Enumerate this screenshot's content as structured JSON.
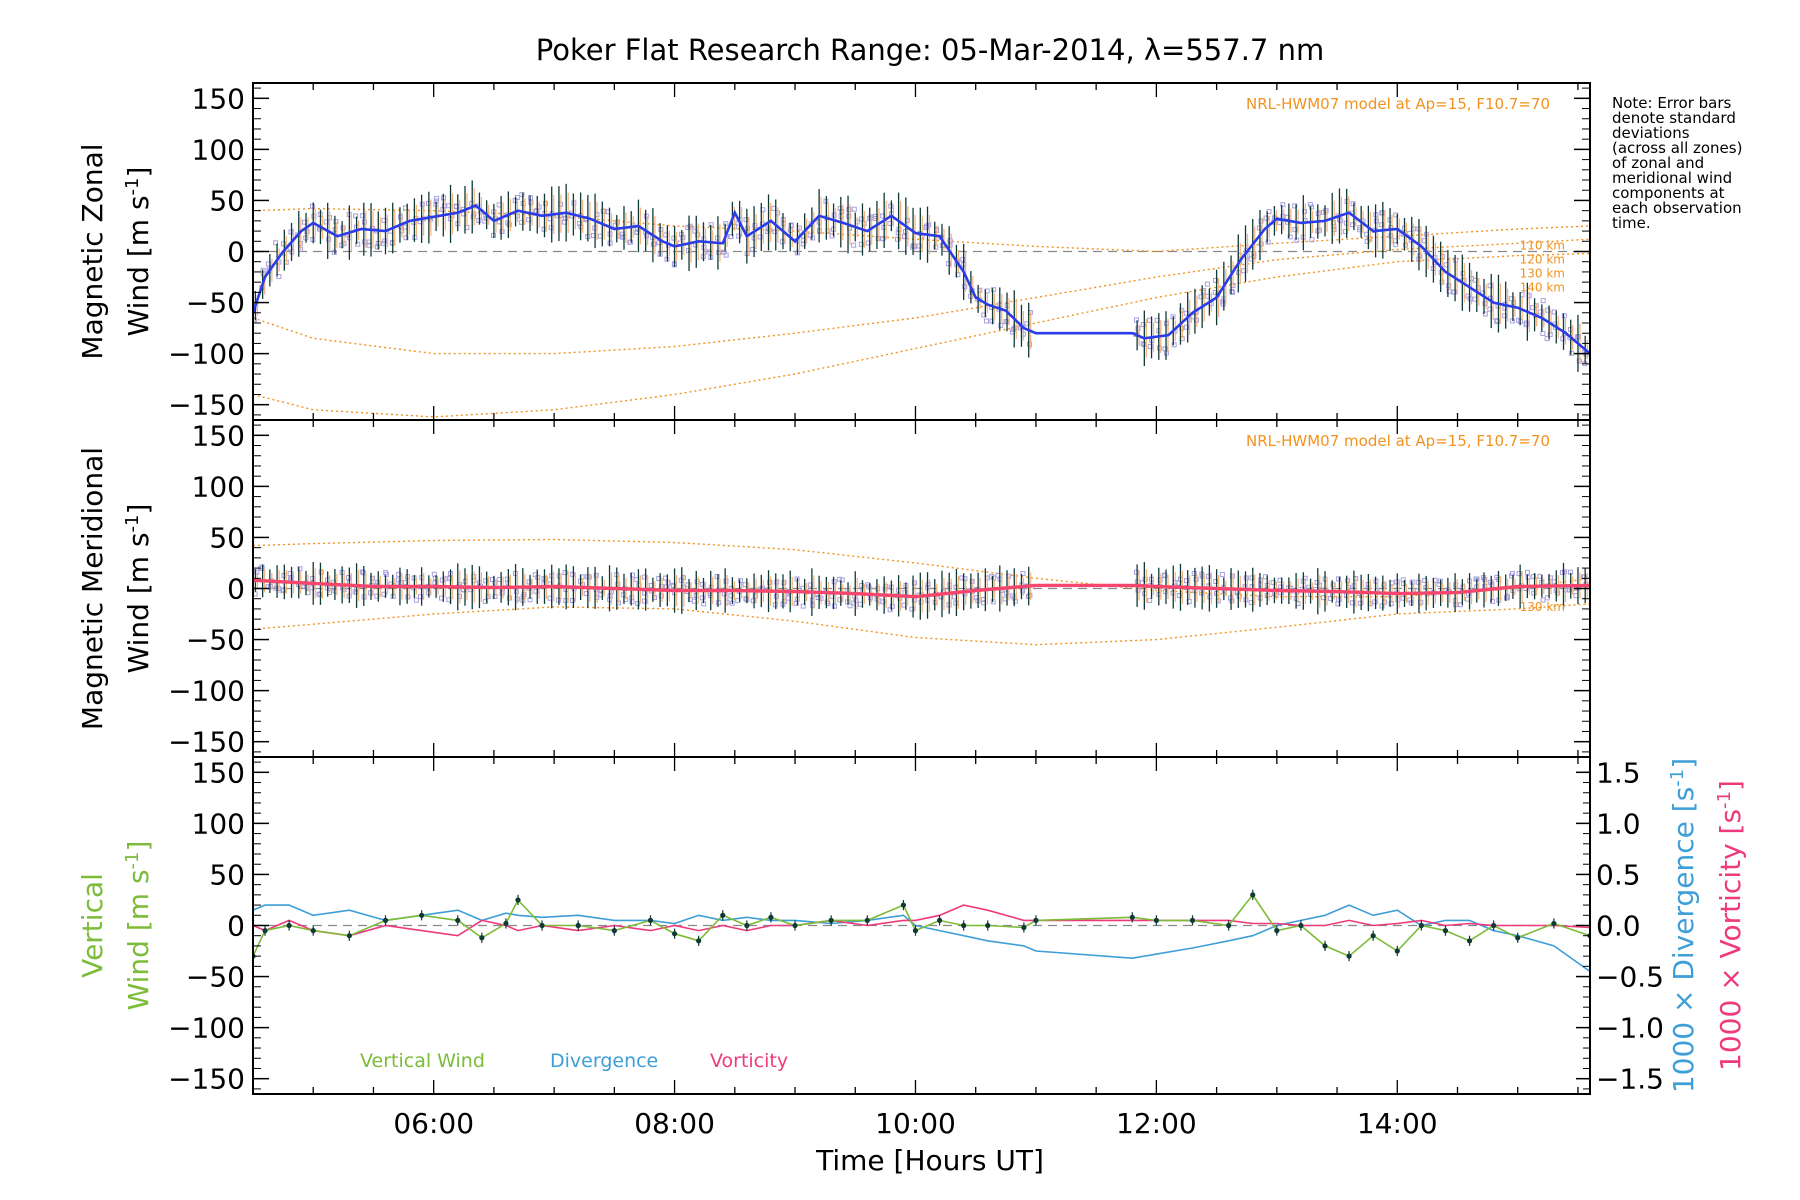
{
  "title": "Poker Flat Research Range: 05-Mar-2014, λ=557.7 nm",
  "note_lines": [
    "Note: Error bars",
    "denote standard",
    "deviations",
    "(across all zones)",
    "of zonal and",
    "meridional wind",
    "components at",
    "each observation",
    "time."
  ],
  "model_note": "NRL-HWM07 model at Ap=15, F10.7=70",
  "colors": {
    "zonal_line": "#2a3de8",
    "meridional_line": "#f5476e",
    "vertical_line": "#7cbc38",
    "divergence_line": "#3e9ed8",
    "vorticity_line": "#ee3a7c",
    "model_line": "#f2921f",
    "samples": "#a9a0e0",
    "error_bars": "#0f3a38"
  },
  "chart_data": [
    {
      "type": "line",
      "name": "zonal",
      "ylabel_top": "Magnetic Zonal",
      "ylabel_bottom": "Wind",
      "ylabel_units": "[m s",
      "ylabel_sup": "-1",
      "ylabel_close": "]",
      "ylim": [
        -165,
        165
      ],
      "yticks": [
        "150",
        "100",
        "50",
        "0",
        "−50",
        "−100",
        "−150"
      ],
      "ytick_values": [
        150,
        100,
        50,
        0,
        -50,
        -100,
        -150
      ],
      "model_altitude_labels": [
        "110 km",
        "120 km",
        "130 km",
        "140 km"
      ],
      "x": [
        4.5,
        4.6,
        4.75,
        4.9,
        5.0,
        5.2,
        5.4,
        5.6,
        5.8,
        6.0,
        6.2,
        6.35,
        6.5,
        6.7,
        6.9,
        7.1,
        7.3,
        7.5,
        7.7,
        7.9,
        8.0,
        8.2,
        8.4,
        8.5,
        8.6,
        8.8,
        9.0,
        9.2,
        9.4,
        9.6,
        9.8,
        10.0,
        10.2,
        10.4,
        10.5,
        10.6,
        10.75,
        10.9,
        11.0,
        11.8,
        11.9,
        12.1,
        12.3,
        12.5,
        12.7,
        12.9,
        13.0,
        13.2,
        13.4,
        13.6,
        13.8,
        14.0,
        14.2,
        14.4,
        14.6,
        14.8,
        15.0,
        15.2,
        15.4,
        15.6
      ],
      "series": [
        {
          "values": [
            -60,
            -25,
            0,
            20,
            28,
            15,
            22,
            20,
            30,
            34,
            38,
            45,
            30,
            40,
            35,
            38,
            32,
            22,
            25,
            10,
            5,
            10,
            8,
            38,
            15,
            30,
            10,
            35,
            28,
            20,
            35,
            18,
            15,
            -20,
            -45,
            -52,
            -58,
            -75,
            -80,
            -80,
            -85,
            -82,
            -60,
            -45,
            -8,
            22,
            32,
            28,
            30,
            38,
            20,
            22,
            5,
            -20,
            -35,
            -50,
            -55,
            -65,
            -80,
            -100
          ]
        }
      ],
      "model_x": [
        4.5,
        5.0,
        6.0,
        7.0,
        8.0,
        9.0,
        10.0,
        11.0,
        12.0,
        13.0,
        14.0,
        15.0,
        15.6
      ],
      "model_series": [
        {
          "values": [
            40,
            42,
            40,
            35,
            25,
            20,
            12,
            5,
            0,
            8,
            15,
            22,
            25
          ]
        },
        {
          "values": [
            -65,
            -85,
            -100,
            -100,
            -93,
            -80,
            -65,
            -45,
            -25,
            -8,
            2,
            8,
            12
          ]
        },
        {
          "values": [
            -140,
            -155,
            -162,
            -155,
            -140,
            -120,
            -95,
            -70,
            -45,
            -25,
            -10,
            -4,
            -2
          ]
        }
      ]
    },
    {
      "type": "line",
      "name": "meridional",
      "ylabel_top": "Magnetic Meridional",
      "ylabel_bottom": "Wind",
      "ylabel_units": "[m s",
      "ylabel_sup": "-1",
      "ylabel_close": "]",
      "ylim": [
        -165,
        165
      ],
      "yticks": [
        "150",
        "100",
        "50",
        "0",
        "−50",
        "−100",
        "−150"
      ],
      "ytick_values": [
        150,
        100,
        50,
        0,
        -50,
        -100,
        -150
      ],
      "model_altitude_labels": [
        "130 km"
      ],
      "x": [
        4.5,
        5.0,
        5.5,
        6.0,
        6.5,
        7.0,
        7.5,
        8.0,
        8.5,
        9.0,
        9.5,
        10.0,
        10.5,
        11.0,
        11.8,
        12.0,
        12.5,
        13.0,
        13.5,
        14.0,
        14.5,
        15.0,
        15.6
      ],
      "series": [
        {
          "values": [
            8,
            5,
            2,
            2,
            1,
            2,
            0,
            -2,
            -2,
            -3,
            -5,
            -8,
            -2,
            3,
            3,
            2,
            0,
            -2,
            -3,
            -5,
            -4,
            2,
            3
          ]
        }
      ],
      "model_x": [
        4.5,
        5.0,
        6.0,
        7.0,
        8.0,
        9.0,
        10.0,
        11.0,
        12.0,
        13.0,
        14.0,
        15.0,
        15.6
      ],
      "model_series": [
        {
          "values": [
            42,
            44,
            47,
            48,
            45,
            38,
            25,
            10,
            -2,
            -8,
            -8,
            0,
            10
          ]
        },
        {
          "values": [
            -40,
            -35,
            -25,
            -18,
            -20,
            -32,
            -48,
            -55,
            -50,
            -38,
            -25,
            -20,
            -15
          ]
        }
      ]
    },
    {
      "type": "line",
      "name": "vertical",
      "ylabel_top": "Vertical",
      "ylabel_bottom": "Wind",
      "ylabel_units": "[m s",
      "ylabel_sup": "-1",
      "ylabel_close": "]",
      "ylim": [
        -165,
        165
      ],
      "yticks": [
        "150",
        "100",
        "50",
        "0",
        "−50",
        "−100",
        "−150"
      ],
      "ytick_values": [
        150,
        100,
        50,
        0,
        -50,
        -100,
        -150
      ],
      "y2lim": [
        -1.65,
        1.65
      ],
      "y2ticks": [
        "1.5",
        "1.0",
        "0.5",
        "0.0",
        "−0.5",
        "−1.0",
        "−1.5"
      ],
      "y2tick_values": [
        1.5,
        1.0,
        0.5,
        0.0,
        -0.5,
        -1.0,
        -1.5
      ],
      "y2label_divergence": "1000 × Divergence [s",
      "y2label_vorticity": "1000 × Vorticity [s",
      "y2label_sup": "-1",
      "y2label_close": "]",
      "legend": [
        "Vertical Wind",
        "Divergence",
        "Vorticity"
      ],
      "x": [
        4.5,
        4.6,
        4.8,
        5.0,
        5.3,
        5.6,
        5.9,
        6.2,
        6.4,
        6.6,
        6.7,
        6.9,
        7.2,
        7.5,
        7.8,
        8.0,
        8.2,
        8.4,
        8.6,
        8.8,
        9.0,
        9.3,
        9.6,
        9.9,
        10.0,
        10.2,
        10.4,
        10.6,
        10.9,
        11.0,
        11.8,
        12.0,
        12.3,
        12.6,
        12.8,
        13.0,
        13.2,
        13.4,
        13.6,
        13.8,
        14.0,
        14.2,
        14.4,
        14.6,
        14.8,
        15.0,
        15.3,
        15.6
      ],
      "series": [
        {
          "name": "Vertical Wind",
          "values": [
            -30,
            -5,
            0,
            -5,
            -10,
            5,
            10,
            5,
            -12,
            2,
            25,
            0,
            0,
            -5,
            5,
            -8,
            -15,
            10,
            0,
            8,
            0,
            5,
            5,
            20,
            -5,
            5,
            0,
            0,
            -2,
            5,
            8,
            5,
            5,
            0,
            30,
            -5,
            0,
            -20,
            -30,
            -10,
            -25,
            0,
            -5,
            -15,
            0,
            -12,
            2,
            -10
          ]
        },
        {
          "name": "Divergence",
          "values": [
            0.15,
            0.2,
            0.2,
            0.1,
            0.15,
            0.05,
            0.1,
            0.15,
            0.05,
            0.12,
            0.1,
            0.08,
            0.1,
            0.05,
            0.05,
            0.02,
            0.1,
            0.05,
            0.08,
            0.05,
            0.05,
            0.02,
            0.05,
            0.1,
            0.0,
            -0.05,
            -0.1,
            -0.15,
            -0.2,
            -0.25,
            -0.32,
            -0.28,
            -0.22,
            -0.15,
            -0.1,
            0.0,
            0.05,
            0.1,
            0.2,
            0.1,
            0.15,
            0.0,
            0.05,
            0.05,
            -0.05,
            -0.1,
            -0.2,
            -0.45
          ]
        },
        {
          "name": "Vorticity",
          "values": [
            0.0,
            -0.05,
            0.05,
            -0.05,
            -0.1,
            0.0,
            -0.05,
            -0.1,
            0.05,
            0.0,
            -0.05,
            0.0,
            -0.05,
            0.0,
            -0.05,
            0.0,
            -0.05,
            0.0,
            -0.05,
            0.0,
            0.0,
            0.05,
            0.0,
            0.05,
            0.05,
            0.1,
            0.2,
            0.15,
            0.05,
            0.05,
            0.05,
            0.05,
            0.05,
            0.05,
            0.02,
            0.02,
            0.0,
            0.0,
            0.05,
            0.0,
            0.02,
            0.05,
            0.0,
            0.02,
            0.0,
            0.0,
            0.0,
            -0.02
          ]
        }
      ]
    }
  ],
  "x_axis": {
    "label": "Time [Hours UT]",
    "range": [
      4.5,
      15.6
    ],
    "ticks": [
      "06:00",
      "08:00",
      "10:00",
      "12:00",
      "14:00"
    ],
    "tick_values": [
      6,
      8,
      10,
      12,
      14
    ]
  }
}
